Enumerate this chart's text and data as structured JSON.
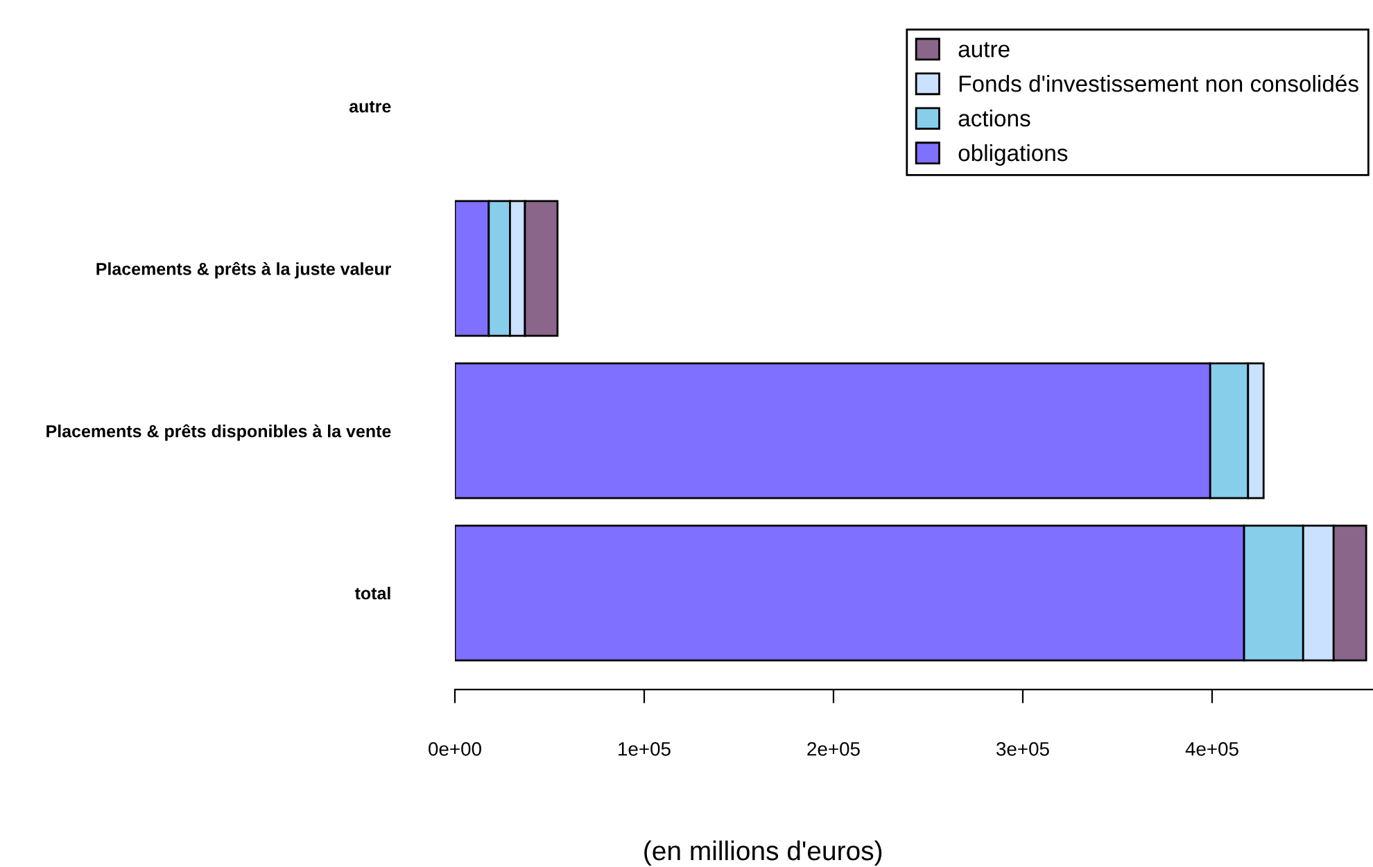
{
  "chart_data": {
    "type": "bar",
    "orientation": "horizontal",
    "stacked": true,
    "xlabel": "(en millions d'euros)",
    "categories": [
      "autre",
      "Placements & prêts à la juste valeur",
      "Placements & prêts disponibles à la vente",
      "total"
    ],
    "series": [
      {
        "name": "obligations",
        "color": "#8070ff",
        "values": [
          0,
          17900,
          399000,
          416900
        ]
      },
      {
        "name": "actions",
        "color": "#87ceeb",
        "values": [
          0,
          11200,
          20000,
          31200
        ]
      },
      {
        "name": "Fonds d'investissement non consolidés",
        "color": "#cae1ff",
        "values": [
          0,
          7900,
          8200,
          16100
        ]
      },
      {
        "name": "autre",
        "color": "#8b668b",
        "values": [
          0,
          17200,
          0,
          17200
        ]
      }
    ],
    "xlim": [
      0,
      485000
    ],
    "xticks": [
      {
        "value": 0,
        "label": "0e+00"
      },
      {
        "value": 100000,
        "label": "1e+05"
      },
      {
        "value": 200000,
        "label": "2e+05"
      },
      {
        "value": 300000,
        "label": "3e+05"
      },
      {
        "value": 400000,
        "label": "4e+05"
      }
    ],
    "legend": "top right"
  }
}
